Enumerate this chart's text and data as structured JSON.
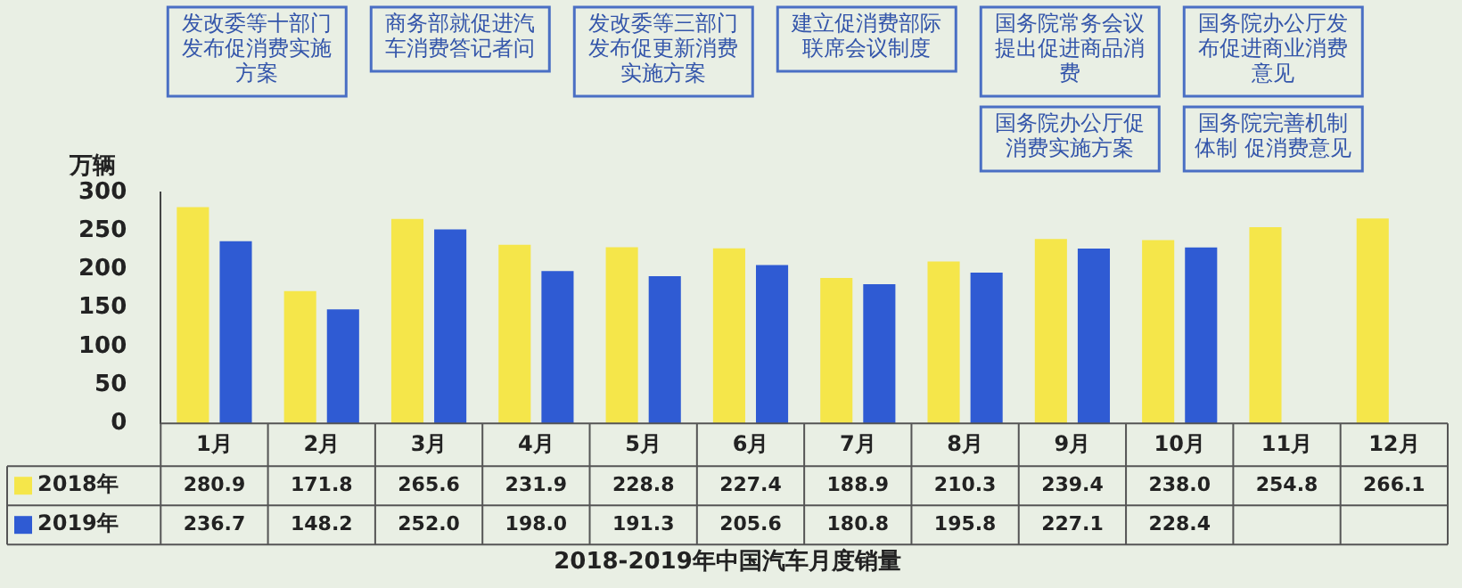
{
  "chart_data": {
    "type": "bar",
    "title": "2018-2019年中国汽车月度销量",
    "ylabel": "万辆",
    "categories": [
      "1月",
      "2月",
      "3月",
      "4月",
      "5月",
      "6月",
      "7月",
      "8月",
      "9月",
      "10月",
      "11月",
      "12月"
    ],
    "series": [
      {
        "name": "2018年",
        "color": "#f5e64a",
        "values": [
          280.9,
          171.8,
          265.6,
          231.9,
          228.8,
          227.4,
          188.9,
          210.3,
          239.4,
          238.0,
          254.8,
          266.1
        ],
        "value_labels": [
          "280.9",
          "171.8",
          "265.6",
          "231.9",
          "228.8",
          "227.4",
          "188.9",
          "210.3",
          "239.4",
          "238.0",
          "254.8",
          "266.1"
        ]
      },
      {
        "name": "2019年",
        "color": "#2f5bd3",
        "values": [
          236.7,
          148.2,
          252.0,
          198.0,
          191.3,
          205.6,
          180.8,
          195.8,
          227.1,
          228.4,
          null,
          null
        ],
        "value_labels": [
          "236.7",
          "148.2",
          "252.0",
          "198.0",
          "191.3",
          "205.6",
          "180.8",
          "195.8",
          "227.1",
          "228.4",
          null,
          null
        ]
      }
    ],
    "ylim": [
      0,
      300
    ],
    "yticks": [
      0,
      50,
      100,
      150,
      200,
      250,
      300
    ],
    "grid": false,
    "legend": "bottom left",
    "annotations": [
      "发改委等十部门发布促消费实施方案",
      "商务部就促进汽车消费答记者问",
      "发改委等三部门发布促更新消费实施方案",
      "建立促消费部际联席会议制度",
      "国务院常务会议提出促进商品消费",
      "国务院办公厅发布促进商业消费意见",
      "国务院完善机制体制 促消费意见",
      "国务院办公厅促消费实施方案"
    ]
  }
}
